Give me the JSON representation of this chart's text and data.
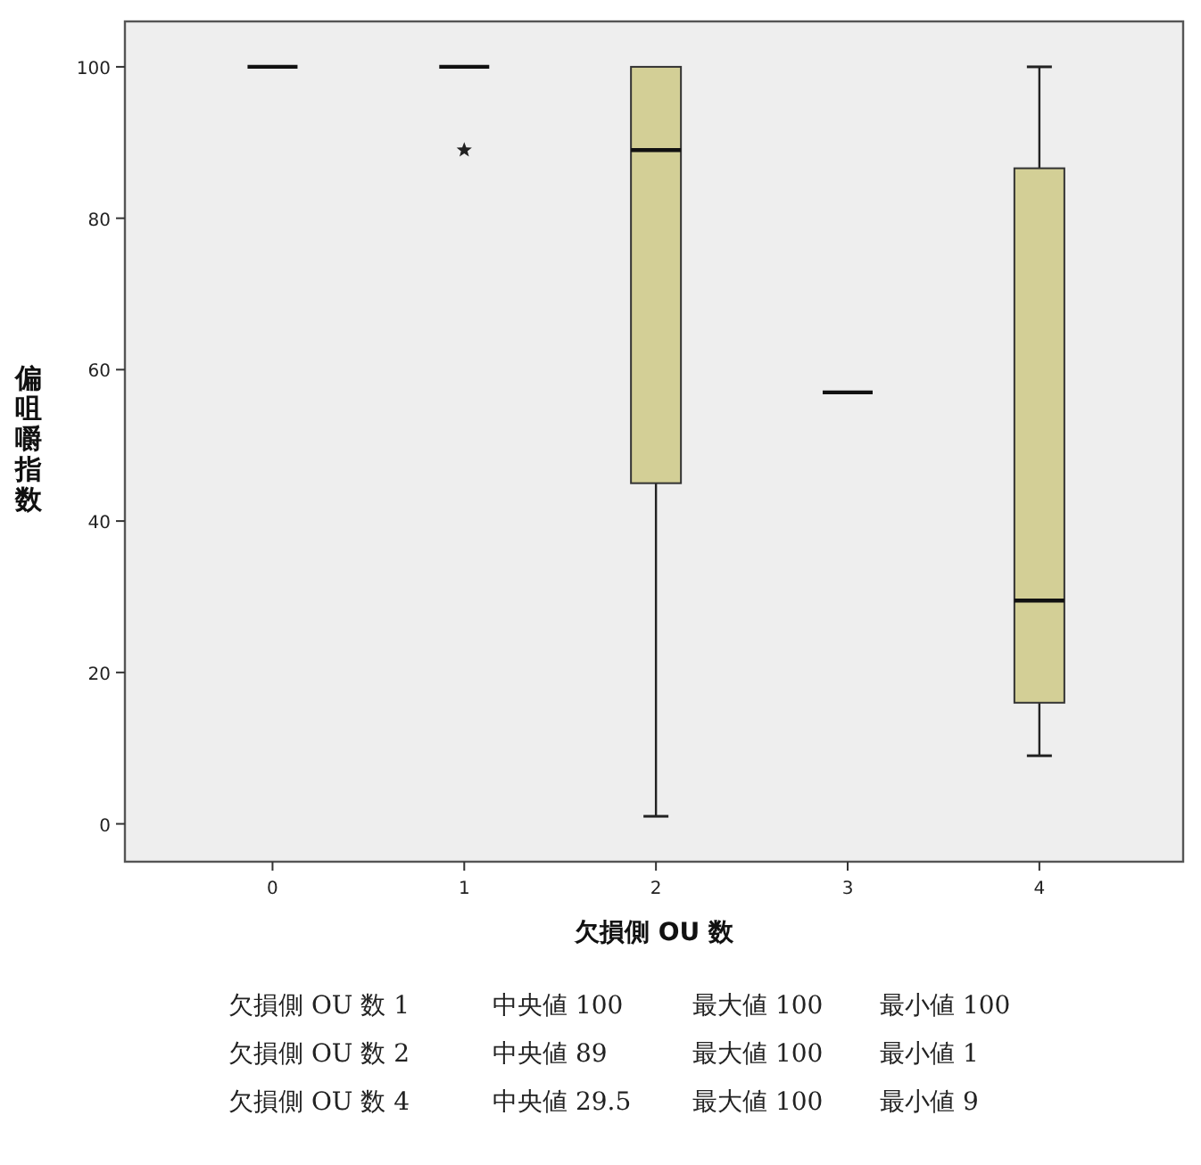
{
  "chart_data": {
    "type": "box",
    "xlabel": "欠損側 OU 数",
    "ylabel": "偏咀嚼指数",
    "categories": [
      "0",
      "1",
      "2",
      "3",
      "4"
    ],
    "colors": [
      "#111111",
      "#111111",
      "#d3cf96",
      "#111111",
      "#d3cf96"
    ],
    "marker": "star",
    "boxes": [
      {
        "low": 100,
        "q1": 100,
        "median": 100,
        "q3": 100,
        "high": 100
      },
      {
        "low": 100,
        "q1": 100,
        "median": 100,
        "q3": 100,
        "high": 100,
        "outliers": [
          89
        ]
      },
      {
        "low": 1,
        "q1": 45,
        "median": 89,
        "q3": 100,
        "high": 100
      },
      {
        "low": 57,
        "q1": 57,
        "median": 57,
        "q3": 57,
        "high": 57
      },
      {
        "low": 9,
        "q1": 16,
        "median": 29.5,
        "q3": 86.6,
        "high": 100
      }
    ],
    "ylim": [
      -5,
      106
    ],
    "yticks": [
      0,
      20,
      40,
      60,
      80,
      100
    ],
    "grid": false,
    "annotations": [
      "欠損側 OU 数 1  中央値 100  最大値 100  最小値 100",
      "欠損側 OU 数 2  中央値 89  最大値 100  最小値 1",
      "欠損側 OU 数 4  中央値 29.5  最大値 100  最小値 9"
    ]
  }
}
